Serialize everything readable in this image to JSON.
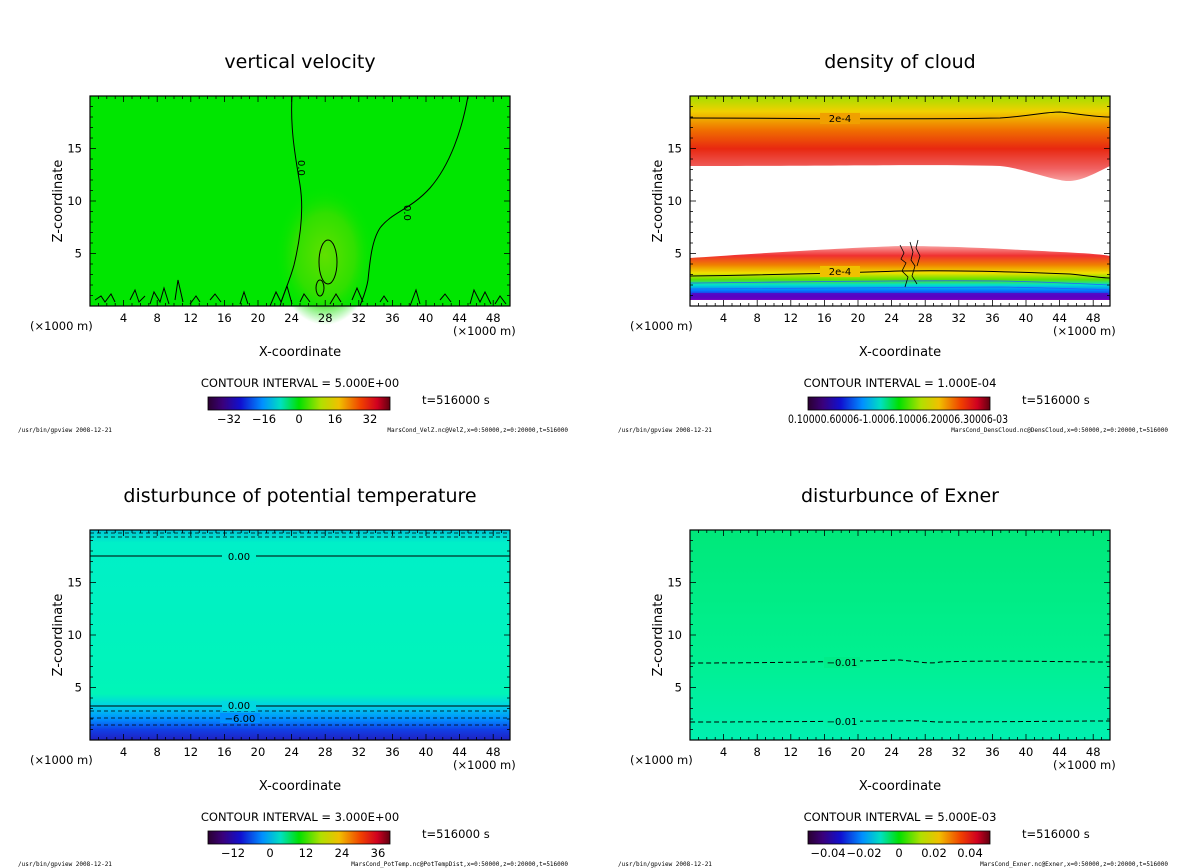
{
  "chart_data": [
    {
      "type": "heatmap",
      "title": "vertical velocity",
      "xlabel": "X-coordinate",
      "ylabel": "Z-coordinate",
      "x_unit_left": "(×1000 m)",
      "x_unit_right": "(×1000 m)",
      "xlim": [
        0,
        50
      ],
      "ylim": [
        0,
        20
      ],
      "xticks": [
        "4",
        "8",
        "12",
        "16",
        "20",
        "24",
        "28",
        "32",
        "36",
        "40",
        "44",
        "48"
      ],
      "yticks": [
        "5",
        "10",
        "15"
      ],
      "contour_interval": "CONTOUR INTERVAL = 5.000E+00",
      "time": "t=516000 s",
      "colorbar_ticks": [
        "−32",
        "−16",
        "0",
        "16",
        "32"
      ],
      "contour_labels": [
        "0.0",
        "0.0"
      ],
      "footer_left": "/usr/bin/gpview  2008-12-21",
      "footer_right": "MarsCond_VelZ.nc@VelZ,x=0:50000,z=0:20000,t=516000",
      "background_color": "#00e600"
    },
    {
      "type": "heatmap",
      "title": "density of cloud",
      "xlabel": "X-coordinate",
      "ylabel": "Z-coordinate",
      "x_unit_left": "(×1000 m)",
      "x_unit_right": "(×1000 m)",
      "xlim": [
        0,
        50
      ],
      "ylim": [
        0,
        20
      ],
      "xticks": [
        "4",
        "8",
        "12",
        "16",
        "20",
        "24",
        "28",
        "32",
        "36",
        "40",
        "44",
        "48"
      ],
      "yticks": [
        "5",
        "10",
        "15"
      ],
      "contour_interval": "CONTOUR INTERVAL = 1.000E-04",
      "time": "t=516000 s",
      "colorbar_label": "0.10000.60006-1.0006.10006.20006.30006-03",
      "contour_labels": [
        "2e-4",
        "2e-4"
      ],
      "footer_left": "/usr/bin/gpview  2008-12-21",
      "footer_right": "MarsCond_DensCloud.nc@DensCloud,x=0:50000,z=0:20000,t=516000"
    },
    {
      "type": "heatmap",
      "title": "disturbunce of potential temperature",
      "xlabel": "X-coordinate",
      "ylabel": "Z-coordinate",
      "x_unit_left": "(×1000 m)",
      "x_unit_right": "(×1000 m)",
      "xlim": [
        0,
        50
      ],
      "ylim": [
        0,
        20
      ],
      "xticks": [
        "4",
        "8",
        "12",
        "16",
        "20",
        "24",
        "28",
        "32",
        "36",
        "40",
        "44",
        "48"
      ],
      "yticks": [
        "5",
        "10",
        "15"
      ],
      "contour_interval": "CONTOUR INTERVAL = 3.000E+00",
      "time": "t=516000 s",
      "colorbar_ticks": [
        "−12",
        "0",
        "12",
        "24",
        "36"
      ],
      "contour_labels": [
        "0.00",
        "0.00",
        "−6.00"
      ],
      "footer_left": "/usr/bin/gpview  2008-12-21",
      "footer_right": "MarsCond_PotTemp.nc@PotTempDist,x=0:50000,z=0:20000,t=516000",
      "background_color": "#00f5b8"
    },
    {
      "type": "heatmap",
      "title": "disturbunce of Exner",
      "xlabel": "X-coordinate",
      "ylabel": "Z-coordinate",
      "x_unit_left": "(×1000 m)",
      "x_unit_right": "(×1000 m)",
      "xlim": [
        0,
        50
      ],
      "ylim": [
        0,
        20
      ],
      "xticks": [
        "4",
        "8",
        "12",
        "16",
        "20",
        "24",
        "28",
        "32",
        "36",
        "40",
        "44",
        "48"
      ],
      "yticks": [
        "5",
        "10",
        "15"
      ],
      "contour_interval": "CONTOUR INTERVAL = 5.000E-03",
      "time": "t=516000 s",
      "colorbar_ticks": [
        "−0.04",
        "−0.02",
        "0",
        "0.02",
        "0.04"
      ],
      "contour_labels": [
        "−0.01",
        "−0.01"
      ],
      "footer_left": "/usr/bin/gpview  2008-12-21",
      "footer_right": "MarsCond_Exner.nc@Exner,x=0:50000,z=0:20000,t=516000",
      "background_color": "#00f080"
    }
  ]
}
